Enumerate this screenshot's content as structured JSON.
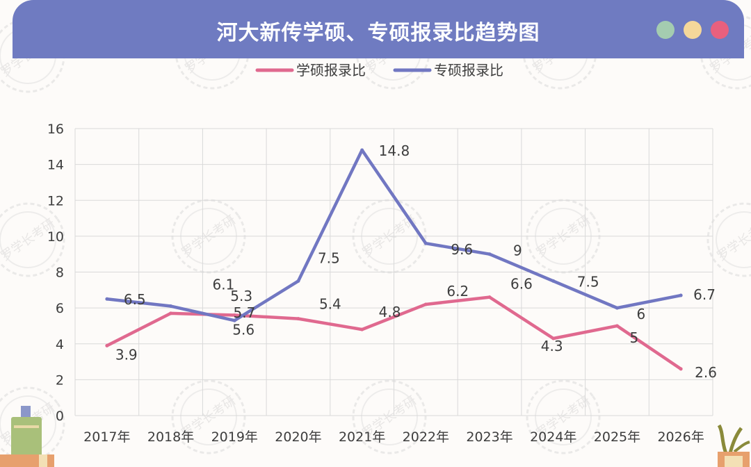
{
  "header": {
    "title": "河大新传学硕、专硕报录比趋势图"
  },
  "watermark_text": "罗学长考研",
  "colors": {
    "header": "#6f7bc1",
    "xueshuo": "#e0698f",
    "zhuanshuo": "#7177c2",
    "grid": "#d9d9d9",
    "text": "#3d3d3d"
  },
  "chart_data": {
    "type": "line",
    "categories": [
      "2017年",
      "2018年",
      "2019年",
      "2020年",
      "2021年",
      "2022年",
      "2023年",
      "2024年",
      "2025年",
      "2026年"
    ],
    "series": [
      {
        "name": "学硕报录比",
        "values": [
          3.9,
          5.7,
          5.6,
          5.4,
          4.8,
          6.2,
          6.6,
          4.3,
          5,
          2.6
        ],
        "color": "#e0698f"
      },
      {
        "name": "专硕报录比",
        "values": [
          6.5,
          6.1,
          5.3,
          7.5,
          14.8,
          9.6,
          9,
          7.5,
          6,
          6.7
        ],
        "color": "#7177c2"
      }
    ],
    "ylim": [
      0,
      16
    ],
    "yticks": [
      "0",
      "2",
      "4",
      "6",
      "8",
      "10",
      "12",
      "14",
      "16"
    ],
    "grid": true,
    "legend": "top-center"
  }
}
